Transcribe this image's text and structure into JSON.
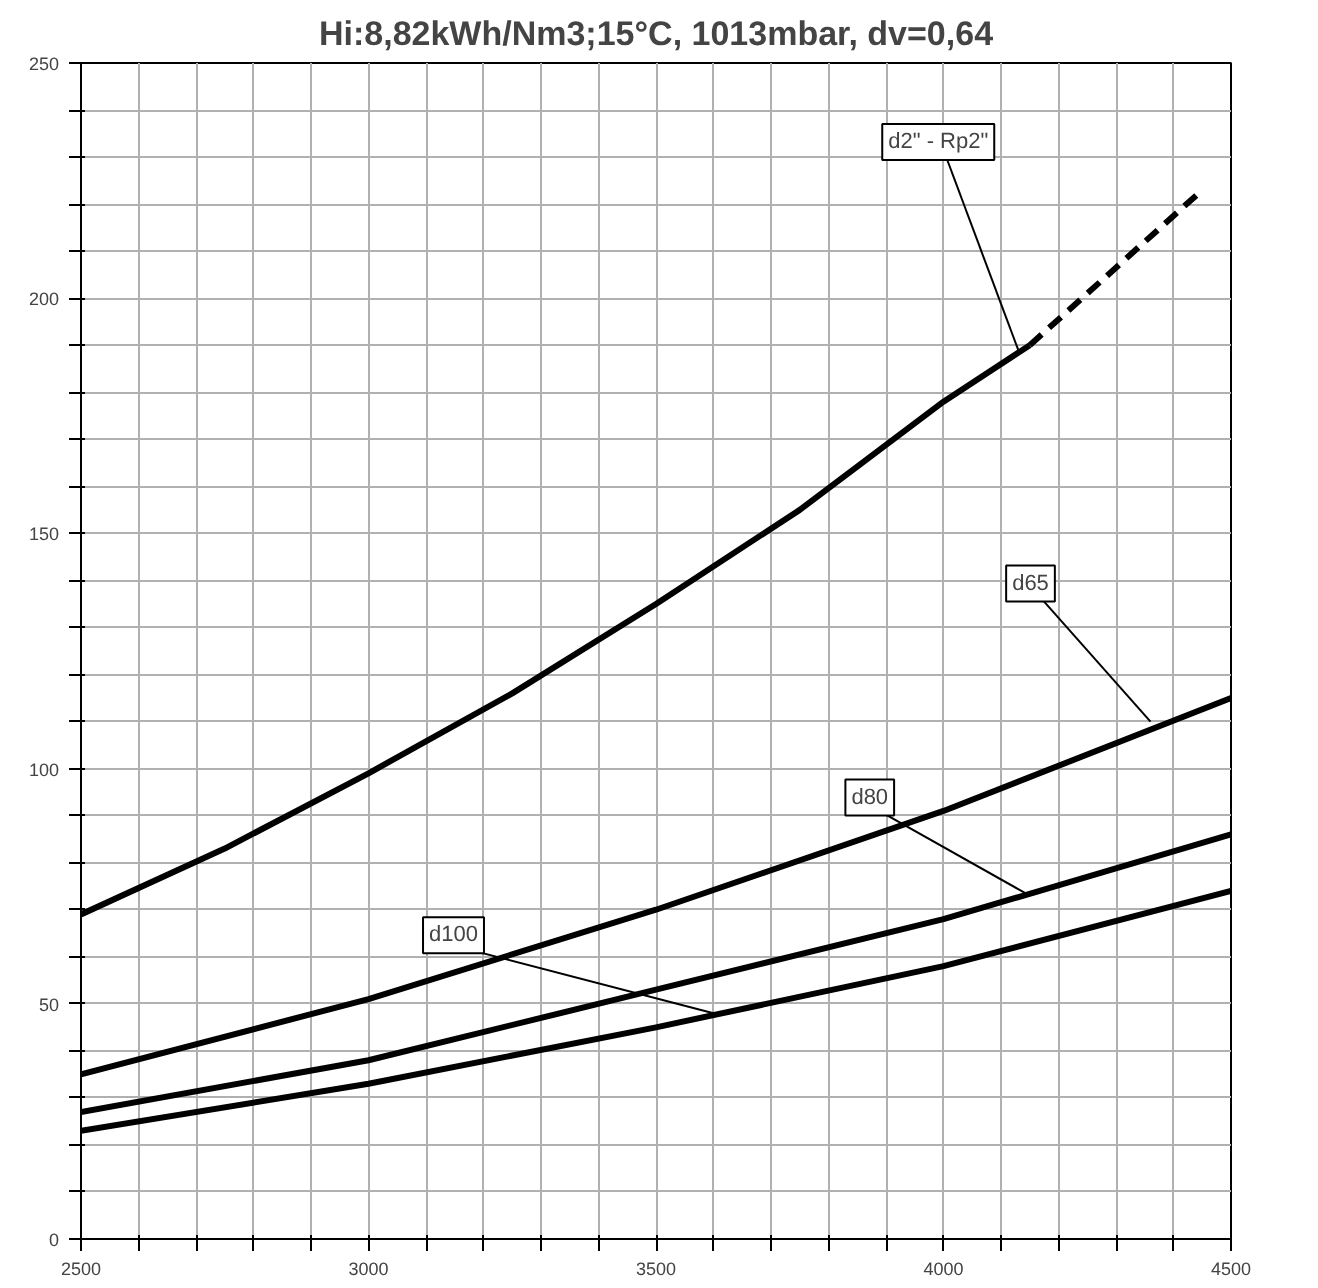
{
  "chart_data": {
    "type": "line",
    "title": "Hi:8,82kWh/Nm3;15°C, 1013mbar, dv=0,64",
    "xlim": [
      2500,
      4500
    ],
    "ylim": [
      0,
      250
    ],
    "xticks": [
      2500,
      {
        "value": 2600,
        "label": null
      },
      {
        "value": 2700,
        "label": null
      },
      {
        "value": 2800,
        "label": null
      },
      {
        "value": 2900,
        "label": null
      },
      3000,
      {
        "value": 3100,
        "label": null
      },
      {
        "value": 3200,
        "label": null
      },
      {
        "value": 3300,
        "label": null
      },
      {
        "value": 3400,
        "label": null
      },
      3500,
      {
        "value": 3600,
        "label": null
      },
      {
        "value": 3700,
        "label": null
      },
      {
        "value": 3800,
        "label": null
      },
      {
        "value": 3900,
        "label": null
      },
      4000,
      {
        "value": 4100,
        "label": null
      },
      {
        "value": 4200,
        "label": null
      },
      {
        "value": 4300,
        "label": null
      },
      {
        "value": 4400,
        "label": null
      },
      4500
    ],
    "yticks": [
      0,
      {
        "value": 10,
        "label": null
      },
      {
        "value": 20,
        "label": null
      },
      {
        "value": 30,
        "label": null
      },
      {
        "value": 40,
        "label": null
      },
      50,
      {
        "value": 60,
        "label": null
      },
      {
        "value": 70,
        "label": null
      },
      {
        "value": 80,
        "label": null
      },
      {
        "value": 90,
        "label": null
      },
      100,
      {
        "value": 110,
        "label": null
      },
      {
        "value": 120,
        "label": null
      },
      {
        "value": 130,
        "label": null
      },
      {
        "value": 140,
        "label": null
      },
      150,
      {
        "value": 160,
        "label": null
      },
      {
        "value": 170,
        "label": null
      },
      {
        "value": 180,
        "label": null
      },
      {
        "value": 190,
        "label": null
      },
      200,
      {
        "value": 210,
        "label": null
      },
      {
        "value": 220,
        "label": null
      },
      {
        "value": 230,
        "label": null
      },
      {
        "value": 240,
        "label": null
      },
      250
    ],
    "grid": true,
    "marker": "none",
    "series": [
      {
        "color": "#000000",
        "line_style": "solid",
        "x": [
          2500,
          2750,
          3000,
          3250,
          3500,
          3750,
          4000,
          4150
        ],
        "values": [
          69,
          83,
          99,
          116,
          135,
          155,
          178,
          190
        ]
      },
      {
        "color": "#000000",
        "line_style": "dashed",
        "x": [
          4150,
          4450
        ],
        "values": [
          190,
          223
        ]
      },
      {
        "color": "#000000",
        "line_style": "solid",
        "x": [
          2500,
          3000,
          3500,
          4000,
          4500
        ],
        "values": [
          35,
          51,
          70,
          91,
          115
        ]
      },
      {
        "color": "#000000",
        "line_style": "solid",
        "x": [
          2500,
          3000,
          3500,
          4000,
          4500
        ],
        "values": [
          27,
          38,
          53,
          68,
          86
        ]
      },
      {
        "color": "#000000",
        "line_style": "solid",
        "x": [
          2500,
          3000,
          3500,
          4000,
          4500
        ],
        "values": [
          23,
          33,
          45,
          58,
          74
        ]
      }
    ],
    "annotations": [
      {
        "text": "d2\" - Rp2\"",
        "x": 4130,
        "y": 189
      },
      {
        "text": "d65",
        "x": 4360,
        "y": 110
      },
      {
        "text": "d80",
        "x": 4150,
        "y": 73
      },
      {
        "text": "d100",
        "x": 3600,
        "y": 48
      }
    ]
  }
}
